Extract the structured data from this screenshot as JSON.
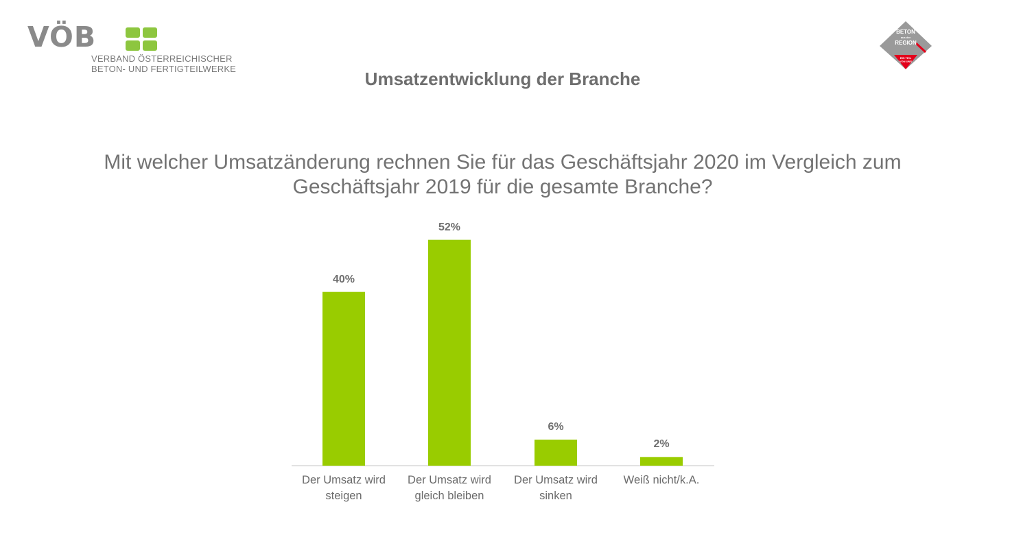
{
  "header": {
    "logo_left": {
      "letters": "VÖB",
      "line1": "VERBAND ÖSTERREICHISCHER",
      "line2": "BETON- UND FERTIGTEILWERKE"
    },
    "logo_right": {
      "line1": "BETON",
      "line2": "aus der",
      "line3": "REGION",
      "line4": "EIN TEIL",
      "line5": "VON UNS"
    }
  },
  "title": "Umsatzentwicklung der Branche",
  "question": {
    "line1": "Mit welcher Umsatzänderung rechnen Sie für das Geschäftsjahr 2020 im Vergleich zum",
    "line2": "Geschäftsjahr 2019 für die gesamte Branche?"
  },
  "colors": {
    "bar": "#99cc00",
    "text": "#6b6b6b",
    "axis": "#d9d9d9",
    "logo_green": "#8dc63f",
    "logo_gray": "#8a8a8a",
    "badge_gray": "#9a9a9a",
    "badge_red": "#e3001b"
  },
  "chart_data": {
    "type": "bar",
    "title": "",
    "categories": [
      [
        "Der Umsatz wird",
        "steigen"
      ],
      [
        "Der Umsatz wird",
        "gleich bleiben"
      ],
      [
        "Der Umsatz wird",
        "sinken"
      ],
      [
        "Weiß nicht/k.A."
      ]
    ],
    "values": [
      40,
      52,
      6,
      2
    ],
    "data_labels": [
      "40%",
      "52%",
      "6%",
      "2%"
    ],
    "ylim": [
      0,
      60
    ],
    "grid": false,
    "legend": "none"
  }
}
